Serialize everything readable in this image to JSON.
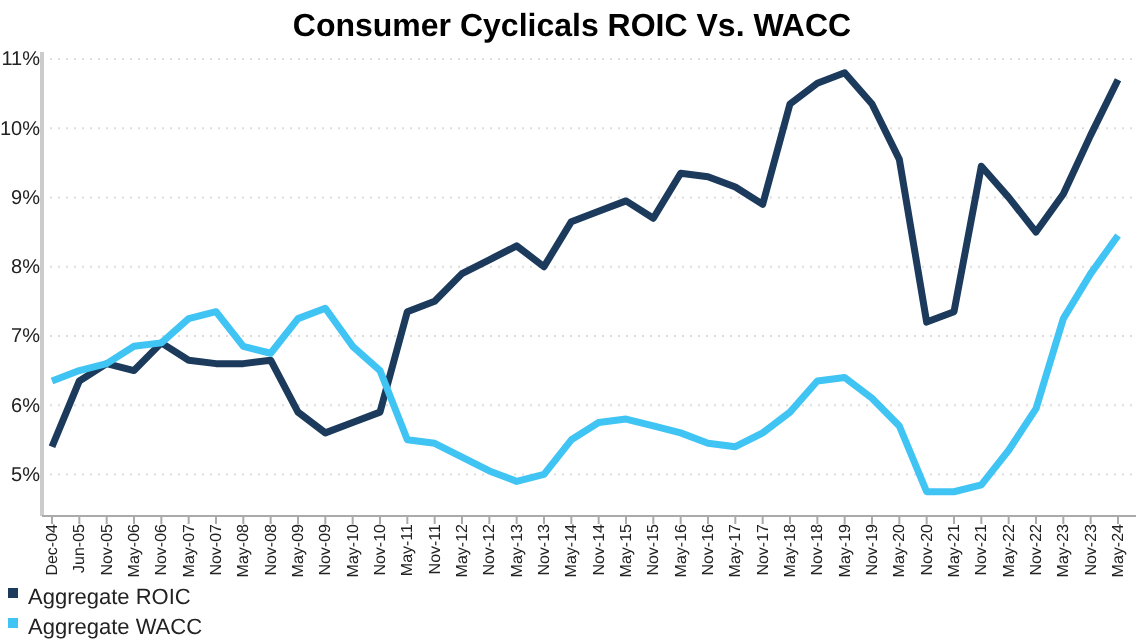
{
  "chart_data": {
    "type": "line",
    "title": "Consumer Cyclicals ROIC Vs. WACC",
    "categories": [
      "Dec-04",
      "Jun-05",
      "Nov-05",
      "May-06",
      "Nov-06",
      "May-07",
      "Nov-07",
      "May-08",
      "Nov-08",
      "May-09",
      "Nov-09",
      "May-10",
      "Nov-10",
      "May-11",
      "Nov-11",
      "May-12",
      "Nov-12",
      "May-13",
      "Nov-13",
      "May-14",
      "Nov-14",
      "May-15",
      "Nov-15",
      "May-16",
      "Nov-16",
      "May-17",
      "Nov-17",
      "May-18",
      "Nov-18",
      "May-19",
      "Nov-19",
      "May-20",
      "Nov-20",
      "May-21",
      "Nov-21",
      "May-22",
      "Nov-22",
      "May-23",
      "Nov-23",
      "May-24"
    ],
    "series": [
      {
        "name": "Aggregate ROIC",
        "color": "#1b3a5c",
        "values": [
          5.4,
          6.35,
          6.6,
          6.5,
          6.9,
          6.65,
          6.6,
          6.6,
          6.65,
          5.9,
          5.6,
          5.75,
          5.9,
          7.35,
          7.5,
          7.9,
          8.1,
          8.3,
          8.0,
          8.65,
          8.8,
          8.95,
          8.7,
          9.35,
          9.3,
          9.15,
          8.9,
          10.35,
          10.65,
          10.8,
          10.35,
          9.55,
          7.2,
          7.35,
          9.45,
          9.0,
          8.5,
          9.05,
          9.9,
          10.7
        ]
      },
      {
        "name": "Aggregate WACC",
        "color": "#40c4f4",
        "values": [
          6.35,
          6.5,
          6.6,
          6.85,
          6.9,
          7.25,
          7.35,
          6.85,
          6.75,
          7.25,
          7.4,
          6.85,
          6.5,
          5.5,
          5.45,
          5.25,
          5.05,
          4.9,
          5.0,
          5.5,
          5.75,
          5.8,
          5.7,
          5.6,
          5.45,
          5.4,
          5.6,
          5.9,
          6.35,
          6.4,
          6.1,
          5.7,
          4.75,
          4.75,
          4.85,
          5.35,
          5.95,
          7.25,
          7.9,
          8.45
        ]
      }
    ],
    "ylim": [
      4.4,
      11.1
    ],
    "yticks": [
      {
        "value": 5,
        "label": "5%"
      },
      {
        "value": 6,
        "label": "6%"
      },
      {
        "value": 7,
        "label": "7%"
      },
      {
        "value": 8,
        "label": "8%"
      },
      {
        "value": 9,
        "label": "9%"
      },
      {
        "value": 10,
        "label": "10%"
      },
      {
        "value": 11,
        "label": "11%"
      }
    ],
    "grid": "y",
    "legend": "bottom left",
    "marker": "none",
    "line_style": "solid"
  }
}
